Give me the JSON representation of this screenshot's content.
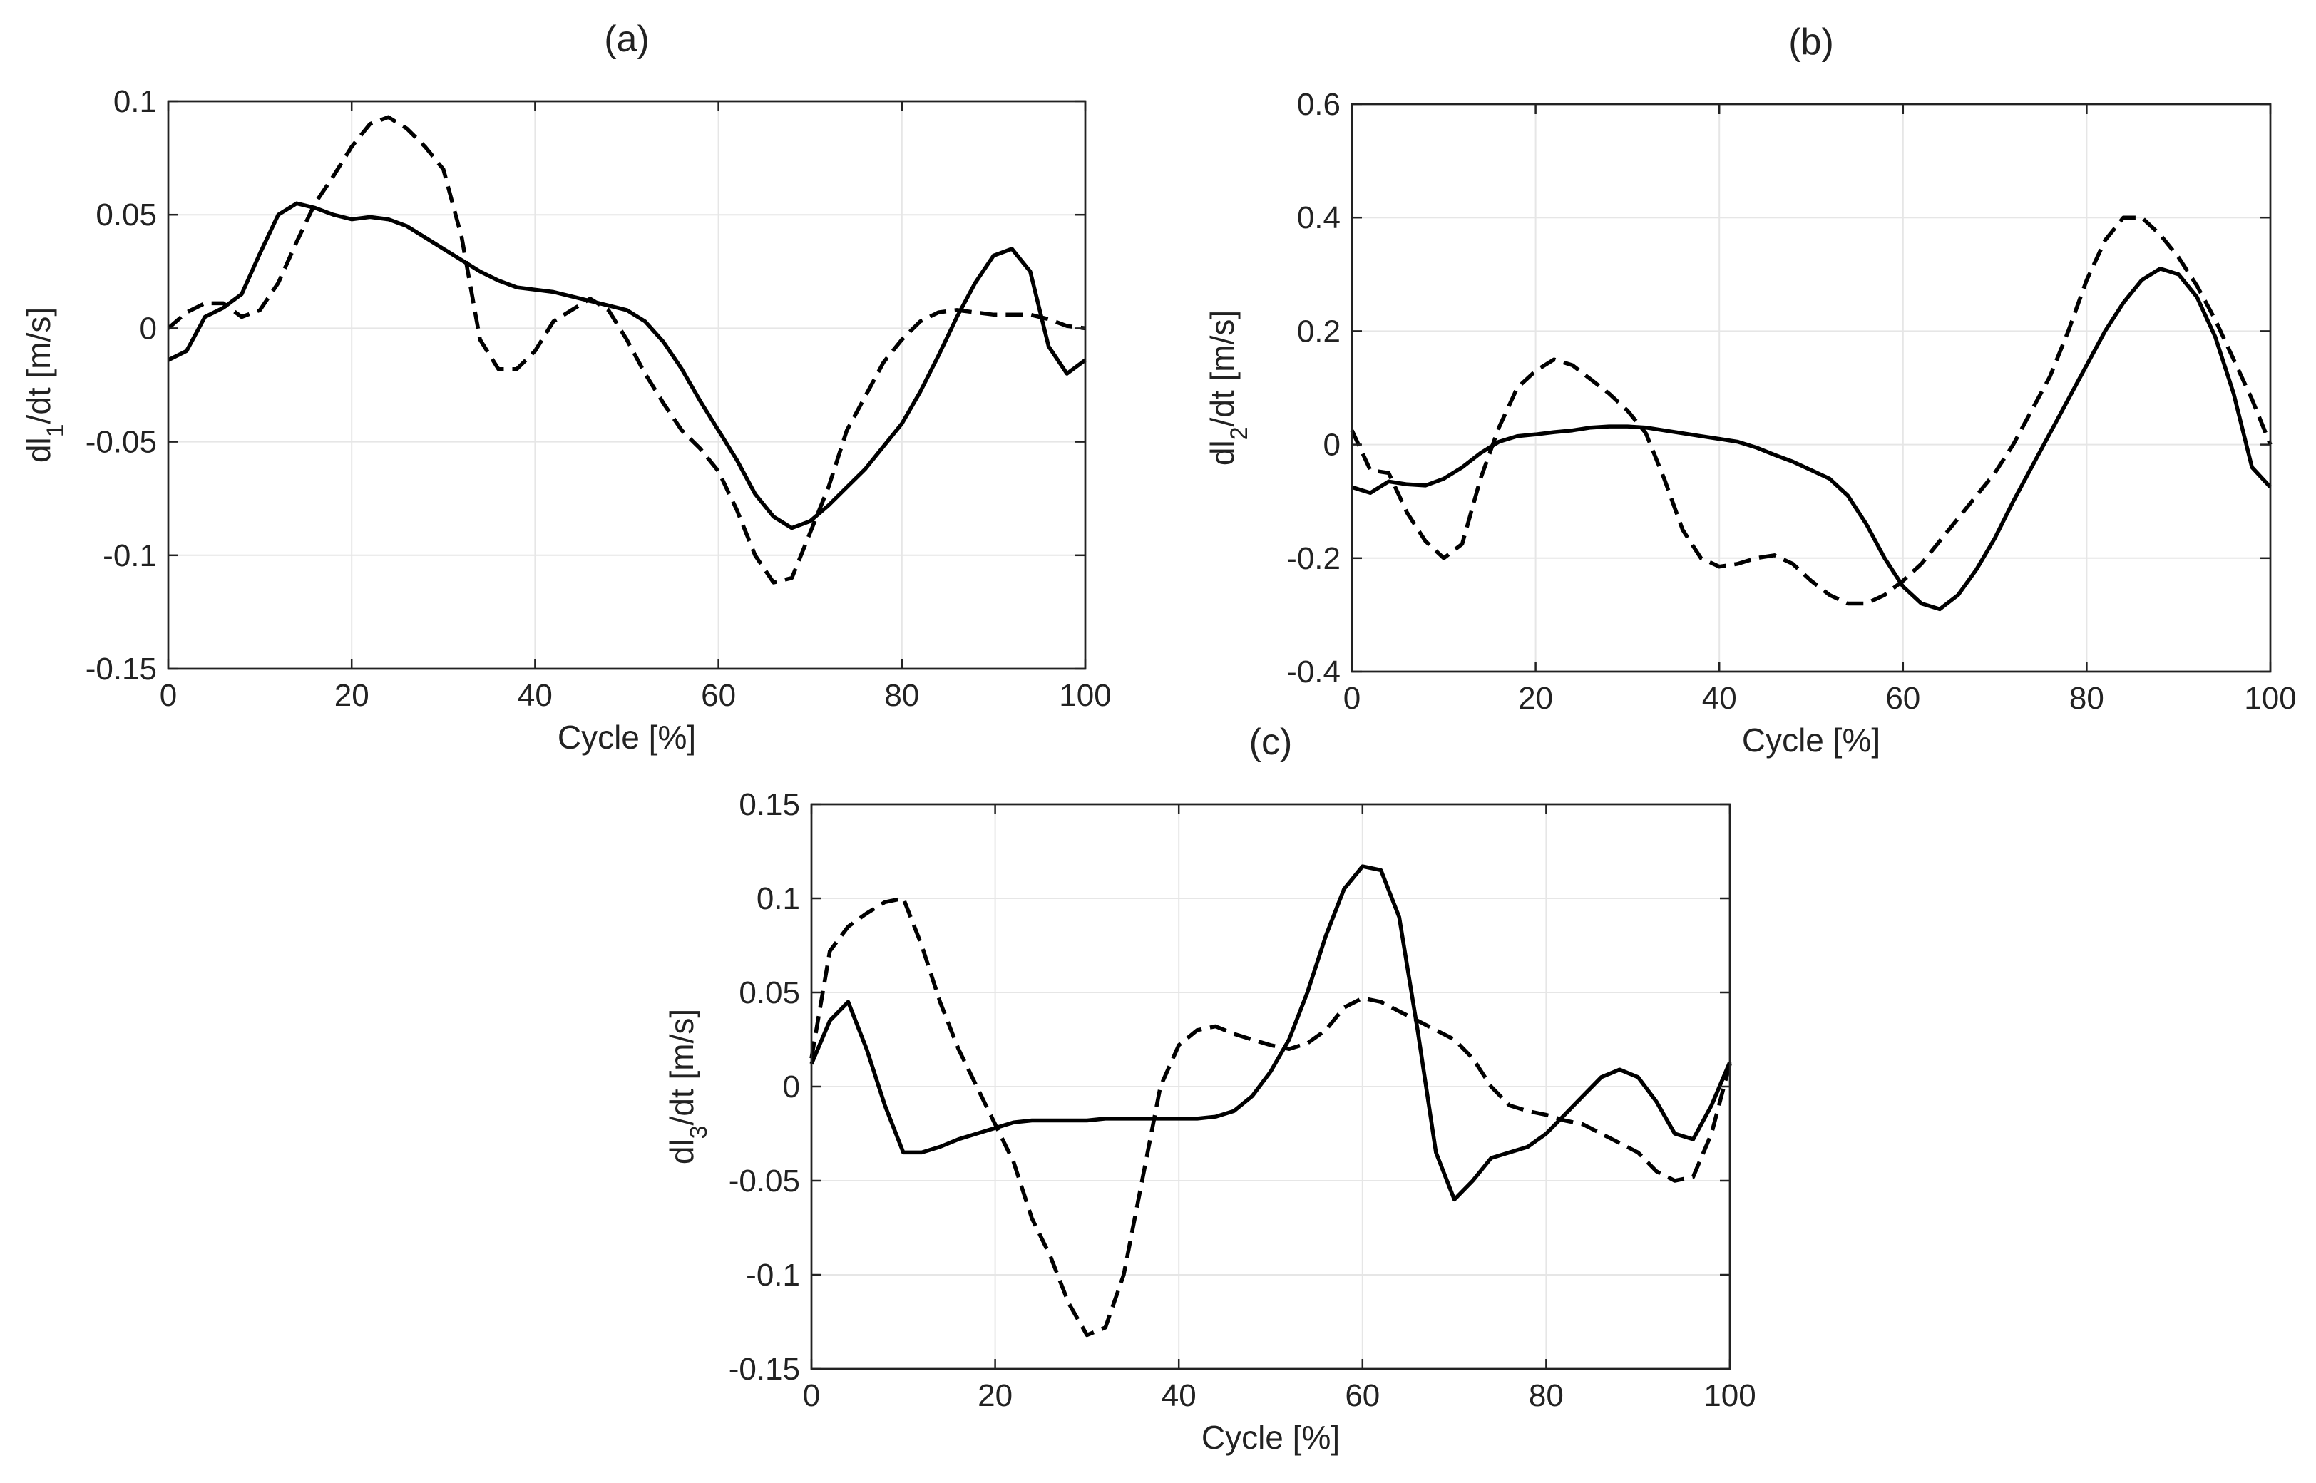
{
  "chart_data": [
    {
      "type": "line",
      "title": "(a)",
      "xlabel": "Cycle [%]",
      "ylabel": {
        "base": "dl",
        "sub": "1",
        "rest": "/dt [m/s]"
      },
      "xlim": [
        0,
        100
      ],
      "ylim": [
        -0.15,
        0.1
      ],
      "xticks": [
        0,
        20,
        40,
        60,
        80,
        100
      ],
      "xtick_labels": [
        "0",
        "20",
        "40",
        "60",
        "80",
        "100"
      ],
      "yticks": [
        -0.15,
        -0.1,
        -0.05,
        0,
        0.05,
        0.1
      ],
      "ytick_labels": [
        "-0.15",
        "-0.1",
        "-0.05",
        "0",
        "0.05",
        "0.1"
      ],
      "grid": true,
      "x": [
        0,
        2,
        4,
        6,
        8,
        10,
        12,
        14,
        16,
        18,
        20,
        22,
        24,
        26,
        28,
        30,
        32,
        34,
        36,
        38,
        40,
        42,
        44,
        46,
        48,
        50,
        52,
        54,
        56,
        58,
        60,
        62,
        64,
        66,
        68,
        70,
        72,
        74,
        76,
        78,
        80,
        82,
        84,
        86,
        88,
        90,
        92,
        94,
        96,
        98,
        100
      ],
      "series": [
        {
          "name": "solid",
          "style": "solid",
          "values": [
            -0.014,
            -0.01,
            0.005,
            0.009,
            0.015,
            0.033,
            0.05,
            0.055,
            0.053,
            0.05,
            0.048,
            0.049,
            0.048,
            0.045,
            0.04,
            0.035,
            0.03,
            0.025,
            0.021,
            0.018,
            0.017,
            0.016,
            0.014,
            0.012,
            0.01,
            0.008,
            0.003,
            -0.006,
            -0.018,
            -0.032,
            -0.045,
            -0.058,
            -0.073,
            -0.083,
            -0.088,
            -0.085,
            -0.078,
            -0.07,
            -0.062,
            -0.052,
            -0.042,
            -0.028,
            -0.012,
            0.005,
            0.02,
            0.032,
            0.035,
            0.025,
            -0.008,
            -0.02,
            -0.014
          ]
        },
        {
          "name": "dashed",
          "style": "dashed",
          "values": [
            0.0,
            0.007,
            0.011,
            0.011,
            0.005,
            0.008,
            0.02,
            0.038,
            0.055,
            0.067,
            0.08,
            0.09,
            0.093,
            0.088,
            0.08,
            0.07,
            0.04,
            -0.005,
            -0.018,
            -0.018,
            -0.01,
            0.003,
            0.008,
            0.013,
            0.008,
            -0.005,
            -0.02,
            -0.033,
            -0.045,
            -0.053,
            -0.063,
            -0.08,
            -0.1,
            -0.112,
            -0.11,
            -0.09,
            -0.07,
            -0.045,
            -0.03,
            -0.015,
            -0.005,
            0.003,
            0.007,
            0.008,
            0.007,
            0.006,
            0.006,
            0.006,
            0.004,
            0.001,
            0.0
          ]
        }
      ]
    },
    {
      "type": "line",
      "title": "(b)",
      "xlabel": "Cycle [%]",
      "ylabel": {
        "base": "dl",
        "sub": "2",
        "rest": "/dt [m/s]"
      },
      "xlim": [
        0,
        100
      ],
      "ylim": [
        -0.4,
        0.6
      ],
      "xticks": [
        0,
        20,
        40,
        60,
        80,
        100
      ],
      "xtick_labels": [
        "0",
        "20",
        "40",
        "60",
        "80",
        "100"
      ],
      "yticks": [
        -0.4,
        -0.2,
        0,
        0.2,
        0.4,
        0.6
      ],
      "ytick_labels": [
        "-0.4",
        "-0.2",
        "0",
        "0.2",
        "0.4",
        "0.6"
      ],
      "grid": true,
      "x": [
        0,
        2,
        4,
        6,
        8,
        10,
        12,
        14,
        16,
        18,
        20,
        22,
        24,
        26,
        28,
        30,
        32,
        34,
        36,
        38,
        40,
        42,
        44,
        46,
        48,
        50,
        52,
        54,
        56,
        58,
        60,
        62,
        64,
        66,
        68,
        70,
        72,
        74,
        76,
        78,
        80,
        82,
        84,
        86,
        88,
        90,
        92,
        94,
        96,
        98,
        100
      ],
      "series": [
        {
          "name": "solid",
          "style": "solid",
          "values": [
            -0.075,
            -0.085,
            -0.065,
            -0.07,
            -0.072,
            -0.06,
            -0.04,
            -0.015,
            0.005,
            0.015,
            0.018,
            0.022,
            0.025,
            0.03,
            0.032,
            0.032,
            0.03,
            0.025,
            0.02,
            0.015,
            0.01,
            0.005,
            -0.005,
            -0.018,
            -0.03,
            -0.045,
            -0.06,
            -0.09,
            -0.14,
            -0.2,
            -0.25,
            -0.28,
            -0.29,
            -0.265,
            -0.22,
            -0.165,
            -0.1,
            -0.04,
            0.02,
            0.08,
            0.14,
            0.2,
            0.25,
            0.29,
            0.31,
            0.3,
            0.26,
            0.19,
            0.09,
            -0.04,
            -0.075
          ]
        },
        {
          "name": "dashed",
          "style": "dashed",
          "values": [
            0.025,
            -0.045,
            -0.05,
            -0.12,
            -0.17,
            -0.2,
            -0.175,
            -0.06,
            0.03,
            0.1,
            0.13,
            0.15,
            0.14,
            0.115,
            0.09,
            0.06,
            0.02,
            -0.06,
            -0.15,
            -0.2,
            -0.215,
            -0.21,
            -0.2,
            -0.195,
            -0.21,
            -0.24,
            -0.265,
            -0.28,
            -0.28,
            -0.265,
            -0.24,
            -0.21,
            -0.17,
            -0.13,
            -0.09,
            -0.05,
            0.0,
            0.06,
            0.12,
            0.2,
            0.29,
            0.36,
            0.4,
            0.4,
            0.37,
            0.33,
            0.28,
            0.22,
            0.15,
            0.08,
            0.0
          ]
        }
      ]
    },
    {
      "type": "line",
      "title": "(c)",
      "xlabel": "Cycle [%]",
      "ylabel": {
        "base": "dl",
        "sub": "3",
        "rest": "/dt [m/s]"
      },
      "xlim": [
        0,
        100
      ],
      "ylim": [
        -0.15,
        0.15
      ],
      "xticks": [
        0,
        20,
        40,
        60,
        80,
        100
      ],
      "xtick_labels": [
        "0",
        "20",
        "40",
        "60",
        "80",
        "100"
      ],
      "yticks": [
        -0.15,
        -0.1,
        -0.05,
        0,
        0.05,
        0.1,
        0.15
      ],
      "ytick_labels": [
        "-0.15",
        "-0.1",
        "-0.05",
        "0",
        "0.05",
        "0.1",
        "0.15"
      ],
      "grid": true,
      "x": [
        0,
        2,
        4,
        6,
        8,
        10,
        12,
        14,
        16,
        18,
        20,
        22,
        24,
        26,
        28,
        30,
        32,
        34,
        36,
        38,
        40,
        42,
        44,
        46,
        48,
        50,
        52,
        54,
        56,
        58,
        60,
        62,
        64,
        66,
        68,
        70,
        72,
        74,
        76,
        78,
        80,
        82,
        84,
        86,
        88,
        90,
        92,
        94,
        96,
        98,
        100
      ],
      "series": [
        {
          "name": "solid",
          "style": "solid",
          "values": [
            0.012,
            0.035,
            0.045,
            0.02,
            -0.01,
            -0.035,
            -0.035,
            -0.032,
            -0.028,
            -0.025,
            -0.022,
            -0.019,
            -0.018,
            -0.018,
            -0.018,
            -0.018,
            -0.017,
            -0.017,
            -0.017,
            -0.017,
            -0.017,
            -0.017,
            -0.016,
            -0.013,
            -0.005,
            0.008,
            0.025,
            0.05,
            0.08,
            0.105,
            0.117,
            0.115,
            0.09,
            0.03,
            -0.035,
            -0.06,
            -0.05,
            -0.038,
            -0.035,
            -0.032,
            -0.025,
            -0.015,
            -0.005,
            0.005,
            0.009,
            0.005,
            -0.008,
            -0.025,
            -0.028,
            -0.01,
            0.013
          ]
        },
        {
          "name": "dashed",
          "style": "dashed",
          "values": [
            0.015,
            0.072,
            0.085,
            0.092,
            0.098,
            0.1,
            0.075,
            0.045,
            0.02,
            0.0,
            -0.02,
            -0.04,
            -0.07,
            -0.09,
            -0.115,
            -0.132,
            -0.128,
            -0.1,
            -0.05,
            0.0,
            0.022,
            0.03,
            0.032,
            0.028,
            0.025,
            0.022,
            0.02,
            0.023,
            0.03,
            0.042,
            0.047,
            0.045,
            0.04,
            0.035,
            0.03,
            0.025,
            0.015,
            0.0,
            -0.01,
            -0.013,
            -0.015,
            -0.018,
            -0.02,
            -0.025,
            -0.03,
            -0.035,
            -0.045,
            -0.05,
            -0.048,
            -0.025,
            0.012
          ]
        }
      ]
    }
  ]
}
